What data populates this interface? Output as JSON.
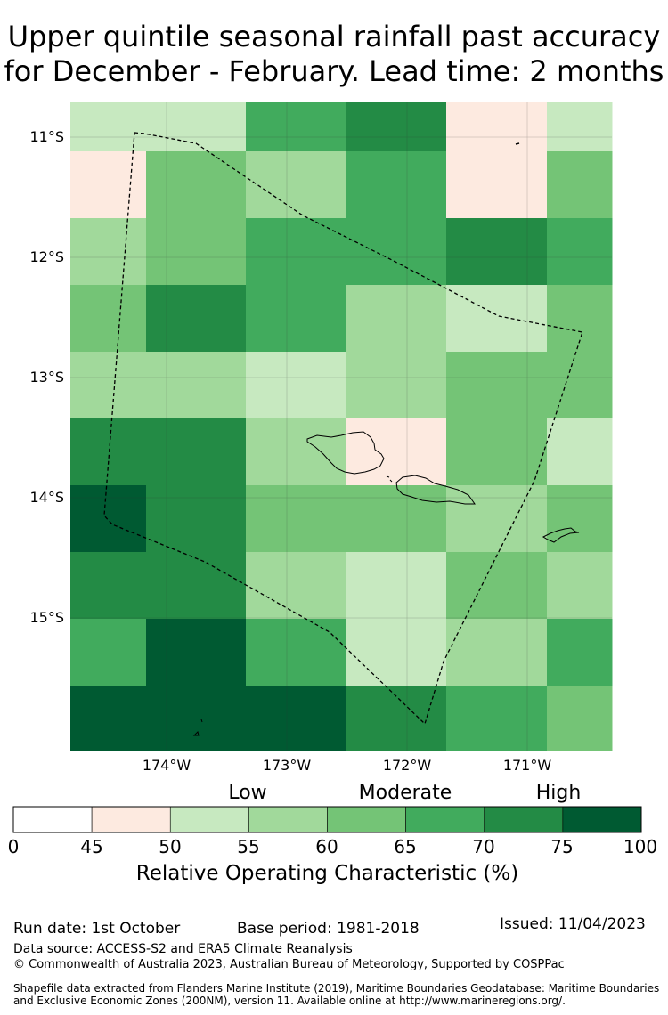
{
  "title_line1": "Upper quintile seasonal rainfall past accuracy",
  "title_line2": "for December - February. Lead time: 2 months",
  "lat_labels": [
    "11°S",
    "12°S",
    "13°S",
    "14°S",
    "15°S"
  ],
  "lon_labels": [
    "174°W",
    "173°W",
    "172°W",
    "171°W"
  ],
  "category_labels": {
    "low": "Low",
    "moderate": "Moderate",
    "high": "High"
  },
  "colorbar": {
    "title": "Relative Operating Characteristic (%)",
    "ticks": [
      "0",
      "45",
      "50",
      "55",
      "60",
      "65",
      "70",
      "75",
      "100"
    ],
    "bins": [
      {
        "range": "0-45",
        "color": "#ffffff"
      },
      {
        "range": "45-50",
        "color": "#fdeae0"
      },
      {
        "range": "50-55",
        "color": "#c7e9c0"
      },
      {
        "range": "55-60",
        "color": "#a1d99b"
      },
      {
        "range": "60-65",
        "color": "#74c476"
      },
      {
        "range": "65-70",
        "color": "#41ab5d"
      },
      {
        "range": "70-75",
        "color": "#238b45"
      },
      {
        "range": "75-100",
        "color": "#005a32"
      }
    ]
  },
  "grid_rows": [
    [
      2,
      2,
      5,
      6,
      1,
      2
    ],
    [
      1,
      4,
      3,
      5,
      1,
      4
    ],
    [
      3,
      4,
      5,
      5,
      6,
      5
    ],
    [
      4,
      6,
      5,
      3,
      2,
      4
    ],
    [
      3,
      3,
      2,
      3,
      4,
      4
    ],
    [
      6,
      6,
      3,
      1,
      4,
      2
    ],
    [
      7,
      6,
      4,
      4,
      3,
      4
    ],
    [
      6,
      6,
      3,
      2,
      4,
      3
    ],
    [
      5,
      7,
      5,
      2,
      3,
      5
    ],
    [
      7,
      7,
      7,
      6,
      5,
      4
    ]
  ],
  "footer": {
    "run_date": "Run date: 1st October",
    "base_period": "Base period: 1981-2018",
    "issued": "Issued: 11/04/2023",
    "data_source": "Data source: ACCESS-S2 and ERA5 Climate Reanalysis",
    "copyright": "© Commonwealth of Australia 2023, Australian Bureau of Meteorology, Supported by COSPPac",
    "shapefile_line1": "Shapefile data extracted from Flanders Marine Institute (2019), Maritime Boundaries Geodatabase: Maritime Boundaries",
    "shapefile_line2": "and Exclusive Economic Zones (200NM), version 11. Available online at http://www.marineregions.org/."
  }
}
